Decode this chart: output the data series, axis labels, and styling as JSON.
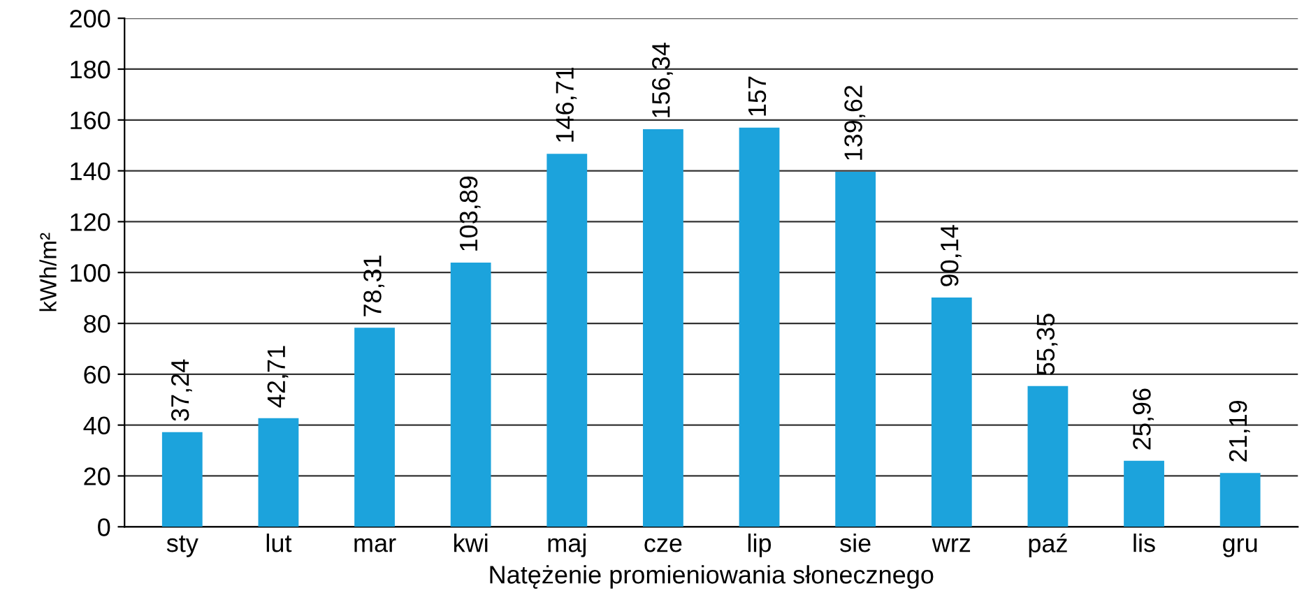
{
  "chart_data": {
    "type": "bar",
    "xlabel": "Natężenie promieniowania słonecznego",
    "ylabel": "kWh/m²",
    "categories": [
      "sty",
      "lut",
      "mar",
      "kwi",
      "maj",
      "cze",
      "lip",
      "sie",
      "wrz",
      "paź",
      "lis",
      "gru"
    ],
    "values": [
      37.24,
      42.71,
      78.31,
      103.89,
      146.71,
      156.34,
      157,
      139.62,
      90.14,
      55.35,
      25.96,
      21.19
    ],
    "value_labels": [
      "37,24",
      "42,71",
      "78,31",
      "103,89",
      "146,71",
      "156,34",
      "157",
      "139,62",
      "90,14",
      "55,35",
      "25,96",
      "21,19"
    ],
    "color": "#1ca3dc",
    "ylim": [
      0,
      200
    ],
    "yticks": [
      0,
      20,
      40,
      60,
      80,
      100,
      120,
      140,
      160,
      180,
      200
    ],
    "grid": "y"
  }
}
